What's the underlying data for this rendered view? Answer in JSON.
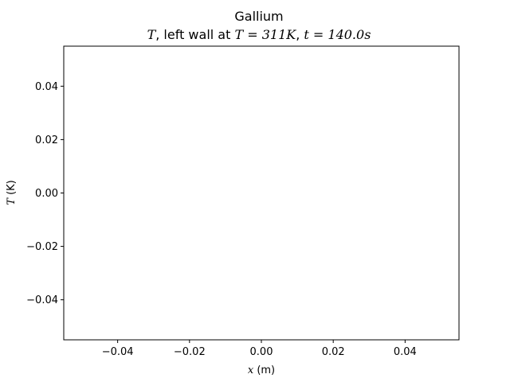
{
  "chart_data": {
    "type": "line",
    "title": "Gallium",
    "subtitle": {
      "var": "T",
      "text1": ", left wall at ",
      "eq1": "T = 311K",
      "sep": ", ",
      "eq2": "t = 140.0s"
    },
    "xlabel": {
      "var": "x",
      "unit": " (m)"
    },
    "ylabel": {
      "var": "T",
      "unit": " (K)"
    },
    "xlim": [
      -0.055,
      0.055
    ],
    "ylim": [
      -0.055,
      0.055
    ],
    "xticks": [
      -0.04,
      -0.02,
      0.0,
      0.02,
      0.04
    ],
    "yticks": [
      -0.04,
      -0.02,
      0.0,
      0.02,
      0.04
    ],
    "xtick_labels": [
      "−0.04",
      "−0.02",
      "0.00",
      "0.02",
      "0.04"
    ],
    "ytick_labels": [
      "−0.04",
      "−0.02",
      "0.00",
      "0.02",
      "0.04"
    ],
    "series": [],
    "grid": false,
    "legend": "none"
  }
}
